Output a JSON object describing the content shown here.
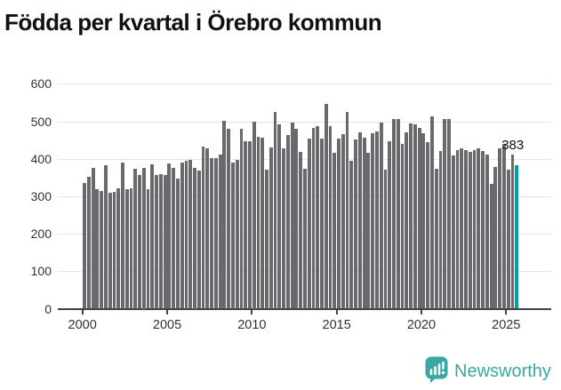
{
  "title": "Födda per kvartal i Örebro kommun",
  "chart_data": {
    "type": "bar",
    "title": "Födda per kvartal i Örebro kommun",
    "x_start": "2000 Q1",
    "x_end": "2025 Q3",
    "frequency": "quarterly",
    "values": [
      335,
      352,
      376,
      319,
      315,
      383,
      310,
      312,
      322,
      390,
      318,
      320,
      373,
      356,
      375,
      318,
      384,
      357,
      360,
      357,
      387,
      376,
      347,
      390,
      394,
      398,
      375,
      369,
      432,
      428,
      401,
      401,
      411,
      502,
      481,
      390,
      396,
      481,
      446,
      447,
      500,
      458,
      456,
      371,
      430,
      525,
      491,
      428,
      464,
      496,
      480,
      418,
      373,
      454,
      483,
      488,
      454,
      546,
      488,
      416,
      454,
      466,
      525,
      394,
      452,
      471,
      456,
      416,
      469,
      472,
      497,
      371,
      447,
      507,
      505,
      440,
      471,
      495,
      492,
      482,
      468,
      445,
      512,
      373,
      420,
      507,
      505,
      409,
      422,
      428,
      423,
      418,
      423,
      428,
      420,
      412,
      333,
      379,
      427,
      440,
      370,
      410,
      383
    ],
    "x_tick_labels": [
      "2000",
      "2005",
      "2010",
      "2015",
      "2020",
      "2025"
    ],
    "x_tick_quarter_index": [
      0,
      20,
      40,
      60,
      80,
      100
    ],
    "y_tick_labels": [
      "0",
      "100",
      "200",
      "300",
      "400",
      "500",
      "600"
    ],
    "y_ticks": [
      0,
      100,
      200,
      300,
      400,
      500,
      600
    ],
    "ylim": [
      0,
      600
    ],
    "grid": "horizontal",
    "legend": "none",
    "bar_color": "#6a6a6e",
    "highlight": {
      "index": 102,
      "value": 383,
      "label": "383",
      "color": "#00a0a0"
    }
  },
  "annotation": {
    "last_value_label": "383"
  },
  "footer": {
    "brand": "Newsworthy",
    "brand_color": "#3ba7a3"
  }
}
